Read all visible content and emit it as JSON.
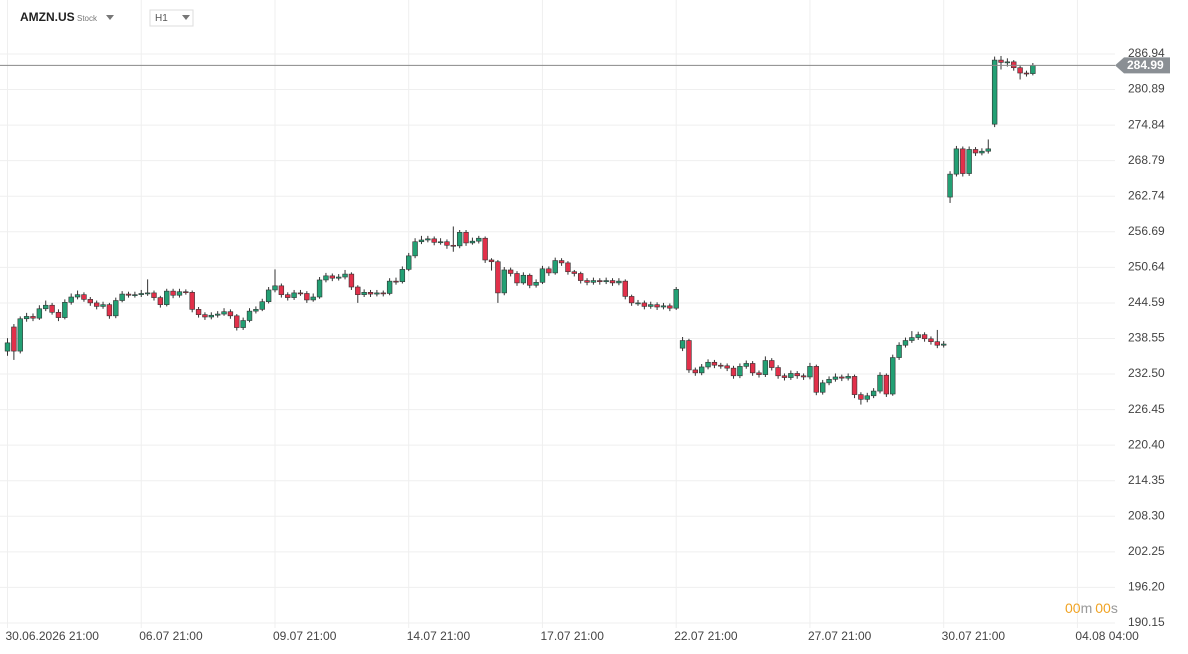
{
  "header": {
    "symbol": "AMZN.US",
    "asset_type": "Stock",
    "interval": "H1"
  },
  "countdown": {
    "minutes": "00",
    "minutes_unit": "m",
    "seconds": "00",
    "seconds_unit": "s"
  },
  "chart_data": {
    "type": "candlestick",
    "up_color": "#23a074",
    "down_color": "#e2304a",
    "last_price": 284.99,
    "ylim": [
      189.3,
      296.12
    ],
    "xlim": [
      -1.18,
      173.9
    ],
    "grid": true,
    "yticks": [
      286.94,
      280.89,
      274.84,
      268.79,
      262.74,
      256.69,
      250.64,
      244.59,
      238.55,
      {
        "value": 232.5,
        "label": "232.50"
      },
      226.45,
      {
        "value": 220.4,
        "label": "220.40"
      },
      214.35,
      {
        "value": 208.3,
        "label": "208.30"
      },
      202.25,
      {
        "value": 196.2,
        "label": "196.20"
      },
      190.15
    ],
    "xticks": [
      {
        "value": 0,
        "label": "30.06.2026 21:00"
      },
      {
        "value": 21,
        "label": "06.07 21:00"
      },
      {
        "value": 42,
        "label": "09.07 21:00"
      },
      {
        "value": 63,
        "label": "14.07 21:00"
      },
      {
        "value": 84,
        "label": "17.07 21:00"
      },
      {
        "value": 105,
        "label": "22.07 21:00"
      },
      {
        "value": 126,
        "label": "27.07 21:00"
      },
      {
        "value": 147,
        "label": "30.07 21:00"
      },
      {
        "value": 168,
        "label": "04.08 04:00"
      }
    ],
    "ohlc": [
      [
        236.4,
        238.6,
        235.6,
        237.8
      ],
      [
        240.5,
        241.0,
        234.9,
        236.4
      ],
      [
        236.4,
        242.3,
        236.0,
        241.9
      ],
      [
        241.9,
        242.9,
        241.4,
        242.3
      ],
      [
        242.3,
        242.8,
        241.5,
        242.0
      ],
      [
        242.0,
        244.2,
        241.7,
        243.6
      ],
      [
        243.6,
        245.0,
        243.2,
        244.2
      ],
      [
        244.2,
        244.6,
        242.6,
        243.0
      ],
      [
        243.0,
        243.5,
        241.5,
        242.1
      ],
      [
        242.1,
        245.2,
        241.8,
        244.7
      ],
      [
        244.7,
        246.2,
        244.3,
        245.6
      ],
      [
        245.6,
        246.7,
        245.2,
        246.0
      ],
      [
        246.0,
        246.4,
        244.8,
        245.2
      ],
      [
        245.2,
        245.6,
        244.1,
        244.6
      ],
      [
        244.6,
        245.0,
        243.5,
        244.0
      ],
      [
        244.0,
        244.8,
        243.6,
        244.3
      ],
      [
        244.3,
        244.6,
        241.9,
        242.4
      ],
      [
        242.4,
        245.5,
        242.0,
        245.0
      ],
      [
        245.0,
        246.6,
        244.7,
        246.1
      ],
      [
        246.1,
        246.5,
        245.5,
        245.9
      ],
      [
        245.9,
        246.5,
        245.5,
        246.0
      ],
      [
        246.0,
        246.8,
        245.6,
        246.2
      ],
      [
        246.2,
        248.6,
        245.8,
        246.3
      ],
      [
        246.3,
        246.7,
        245.0,
        245.5
      ],
      [
        245.5,
        245.8,
        243.8,
        244.3
      ],
      [
        244.3,
        247.0,
        244.0,
        246.6
      ],
      [
        246.6,
        247.0,
        245.4,
        245.9
      ],
      [
        245.9,
        247.0,
        245.5,
        246.5
      ],
      [
        246.5,
        246.9,
        246.0,
        246.4
      ],
      [
        246.4,
        246.7,
        243.0,
        243.5
      ],
      [
        243.5,
        243.9,
        242.1,
        242.6
      ],
      [
        242.6,
        243.0,
        241.7,
        242.2
      ],
      [
        242.2,
        243.0,
        241.8,
        242.5
      ],
      [
        242.5,
        243.2,
        242.1,
        242.7
      ],
      [
        242.7,
        243.7,
        242.4,
        243.1
      ],
      [
        243.1,
        243.5,
        241.9,
        242.4
      ],
      [
        242.4,
        242.7,
        239.9,
        240.4
      ],
      [
        240.4,
        242.1,
        240.0,
        241.6
      ],
      [
        241.6,
        243.7,
        241.3,
        243.2
      ],
      [
        243.2,
        244.0,
        242.8,
        243.5
      ],
      [
        243.5,
        245.3,
        243.2,
        244.8
      ],
      [
        244.8,
        247.3,
        244.5,
        246.8
      ],
      [
        246.8,
        250.3,
        246.4,
        247.5
      ],
      [
        247.5,
        247.9,
        245.5,
        246.0
      ],
      [
        246.0,
        246.4,
        245.0,
        245.5
      ],
      [
        245.5,
        246.8,
        245.1,
        246.3
      ],
      [
        246.3,
        246.8,
        245.8,
        246.2
      ],
      [
        246.2,
        246.6,
        244.6,
        245.1
      ],
      [
        245.1,
        246.2,
        244.8,
        245.6
      ],
      [
        245.6,
        249.0,
        245.3,
        248.5
      ],
      [
        248.5,
        249.7,
        248.1,
        249.2
      ],
      [
        249.2,
        249.6,
        248.3,
        248.8
      ],
      [
        248.8,
        249.5,
        248.4,
        249.0
      ],
      [
        249.0,
        250.2,
        248.6,
        249.5
      ],
      [
        249.5,
        249.8,
        246.8,
        247.3
      ],
      [
        247.3,
        247.6,
        244.6,
        246.0
      ],
      [
        246.0,
        246.9,
        245.6,
        246.4
      ],
      [
        246.4,
        246.8,
        245.6,
        246.1
      ],
      [
        246.1,
        246.8,
        245.7,
        246.3
      ],
      [
        246.3,
        246.7,
        245.7,
        246.2
      ],
      [
        246.2,
        248.8,
        245.9,
        248.3
      ],
      [
        248.3,
        248.9,
        247.7,
        248.2
      ],
      [
        248.2,
        250.8,
        247.9,
        250.3
      ],
      [
        250.3,
        253.1,
        250.0,
        252.6
      ],
      [
        252.6,
        255.6,
        252.2,
        255.0
      ],
      [
        255.0,
        256.0,
        254.6,
        255.3
      ],
      [
        255.3,
        256.0,
        254.9,
        255.5
      ],
      [
        255.5,
        255.9,
        254.4,
        254.9
      ],
      [
        254.9,
        255.6,
        254.5,
        255.0
      ],
      [
        255.0,
        255.4,
        253.8,
        254.4
      ],
      [
        254.4,
        257.6,
        253.3,
        254.3
      ],
      [
        254.3,
        257.0,
        253.9,
        256.6
      ],
      [
        256.6,
        257.0,
        254.3,
        254.8
      ],
      [
        254.8,
        255.7,
        254.5,
        255.1
      ],
      [
        255.1,
        256.0,
        254.7,
        255.6
      ],
      [
        255.6,
        255.9,
        251.4,
        251.9
      ],
      [
        251.9,
        252.2,
        250.1,
        251.6
      ],
      [
        251.6,
        251.9,
        244.6,
        246.3
      ],
      [
        246.3,
        250.7,
        245.9,
        250.2
      ],
      [
        250.2,
        250.6,
        249.1,
        249.6
      ],
      [
        249.6,
        250.0,
        247.5,
        248.0
      ],
      [
        248.0,
        249.8,
        247.7,
        249.3
      ],
      [
        249.3,
        249.6,
        247.1,
        247.6
      ],
      [
        247.6,
        248.6,
        247.2,
        248.1
      ],
      [
        248.1,
        250.9,
        247.8,
        250.4
      ],
      [
        250.4,
        250.8,
        249.2,
        249.7
      ],
      [
        249.7,
        252.3,
        249.4,
        251.8
      ],
      [
        251.8,
        252.2,
        250.9,
        251.4
      ],
      [
        251.4,
        251.7,
        249.4,
        249.9
      ],
      [
        249.9,
        250.2,
        249.1,
        249.6
      ],
      [
        249.6,
        249.9,
        247.9,
        248.4
      ],
      [
        248.4,
        248.8,
        247.6,
        248.1
      ],
      [
        248.1,
        248.9,
        247.7,
        248.4
      ],
      [
        248.4,
        248.8,
        247.7,
        248.2
      ],
      [
        248.2,
        248.9,
        247.8,
        248.4
      ],
      [
        248.4,
        248.8,
        247.5,
        248.0
      ],
      [
        248.0,
        248.8,
        247.6,
        248.3
      ],
      [
        248.3,
        248.6,
        245.2,
        245.7
      ],
      [
        245.7,
        246.0,
        244.1,
        244.6
      ],
      [
        244.6,
        245.1,
        244.1,
        244.6
      ],
      [
        244.6,
        245.0,
        243.5,
        244.0
      ],
      [
        244.0,
        244.8,
        243.6,
        244.3
      ],
      [
        244.3,
        244.7,
        243.4,
        243.9
      ],
      [
        243.9,
        244.6,
        243.5,
        244.1
      ],
      [
        244.1,
        244.5,
        243.2,
        243.7
      ],
      [
        243.7,
        247.3,
        243.4,
        246.9
      ],
      [
        236.9,
        238.8,
        236.4,
        238.2
      ],
      [
        238.2,
        238.5,
        232.7,
        233.2
      ],
      [
        233.2,
        233.6,
        232.2,
        232.7
      ],
      [
        232.7,
        234.2,
        232.3,
        233.7
      ],
      [
        233.7,
        235.0,
        233.3,
        234.5
      ],
      [
        234.5,
        234.9,
        233.5,
        234.0
      ],
      [
        234.0,
        234.4,
        233.4,
        233.9
      ],
      [
        233.9,
        234.3,
        233.0,
        233.5
      ],
      [
        233.5,
        233.9,
        231.7,
        232.2
      ],
      [
        232.2,
        234.3,
        231.8,
        233.8
      ],
      [
        233.8,
        234.8,
        233.4,
        234.3
      ],
      [
        234.3,
        234.7,
        232.2,
        232.7
      ],
      [
        232.7,
        233.1,
        231.9,
        232.4
      ],
      [
        232.4,
        235.5,
        232.0,
        234.8
      ],
      [
        234.8,
        235.2,
        233.1,
        233.6
      ],
      [
        233.6,
        234.0,
        231.7,
        232.2
      ],
      [
        232.2,
        232.6,
        231.4,
        231.9
      ],
      [
        231.9,
        233.1,
        231.5,
        232.6
      ],
      [
        232.6,
        233.0,
        231.7,
        232.2
      ],
      [
        232.2,
        232.6,
        231.5,
        232.0
      ],
      [
        232.0,
        234.4,
        231.6,
        233.8
      ],
      [
        233.8,
        234.1,
        228.9,
        229.4
      ],
      [
        229.4,
        231.5,
        229.0,
        231.0
      ],
      [
        231.0,
        232.1,
        230.6,
        231.6
      ],
      [
        231.6,
        232.6,
        231.2,
        232.0
      ],
      [
        232.0,
        232.4,
        231.3,
        231.8
      ],
      [
        231.8,
        232.6,
        231.4,
        232.1
      ],
      [
        232.1,
        232.4,
        228.4,
        229.0
      ],
      [
        229.0,
        229.4,
        227.3,
        228.2
      ],
      [
        228.2,
        229.3,
        227.7,
        228.8
      ],
      [
        228.8,
        230.1,
        228.4,
        229.6
      ],
      [
        229.6,
        232.8,
        229.2,
        232.3
      ],
      [
        232.3,
        232.6,
        228.6,
        229.1
      ],
      [
        229.1,
        235.8,
        228.8,
        235.3
      ],
      [
        235.3,
        237.9,
        234.9,
        237.4
      ],
      [
        237.4,
        238.7,
        237.0,
        238.2
      ],
      [
        238.2,
        239.8,
        237.8,
        238.7
      ],
      [
        238.7,
        239.7,
        238.3,
        239.2
      ],
      [
        239.2,
        239.6,
        238.0,
        238.5
      ],
      [
        238.5,
        238.9,
        237.5,
        238.0
      ],
      [
        238.0,
        240.0,
        236.9,
        237.4
      ],
      [
        237.4,
        238.1,
        237.0,
        237.6
      ],
      [
        262.6,
        267.0,
        261.6,
        266.5
      ],
      [
        266.5,
        271.3,
        266.1,
        270.8
      ],
      [
        270.8,
        271.2,
        266.1,
        266.6
      ],
      [
        266.6,
        271.2,
        266.2,
        270.7
      ],
      [
        270.7,
        271.1,
        269.6,
        270.1
      ],
      [
        270.1,
        270.9,
        269.7,
        270.4
      ],
      [
        270.4,
        272.4,
        270.0,
        270.8
      ],
      [
        275.0,
        286.5,
        274.5,
        285.9
      ],
      [
        285.9,
        286.6,
        284.3,
        285.5
      ],
      [
        285.5,
        286.2,
        284.8,
        285.6
      ],
      [
        285.6,
        285.9,
        284.1,
        284.6
      ],
      [
        284.6,
        285.0,
        282.6,
        283.7
      ],
      [
        283.7,
        284.1,
        283.1,
        283.6
      ],
      [
        283.6,
        285.4,
        283.3,
        284.99
      ]
    ]
  }
}
